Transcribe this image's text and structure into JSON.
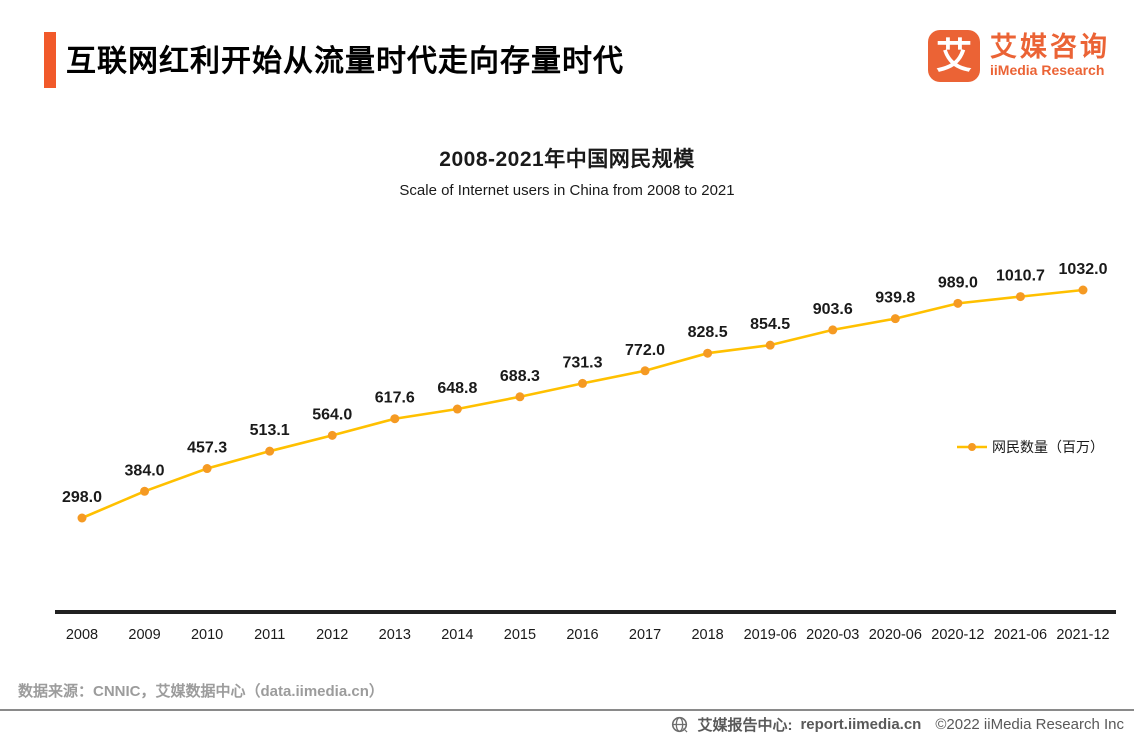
{
  "header": {
    "title": "互联网红利开始从流量时代走向存量时代",
    "logo": {
      "glyph": "艾",
      "name_cn": "艾媒咨询",
      "name_en": "iiMedia Research"
    }
  },
  "chart": {
    "title": "2008-2021年中国网民规模",
    "subtitle": "Scale of Internet users in China from 2008 to 2021",
    "legend_label": "网民数量（百万）"
  },
  "chart_data": {
    "type": "line",
    "title": "2008-2021年中国网民规模",
    "subtitle": "Scale of Internet users in China from 2008 to 2021",
    "categories": [
      "2008",
      "2009",
      "2010",
      "2011",
      "2012",
      "2013",
      "2014",
      "2015",
      "2016",
      "2017",
      "2018",
      "2019-06",
      "2020-03",
      "2020-06",
      "2020-12",
      "2021-06",
      "2021-12"
    ],
    "series": [
      {
        "name": "网民数量（百万）",
        "values": [
          298.0,
          384.0,
          457.3,
          513.1,
          564.0,
          617.6,
          648.8,
          688.3,
          731.3,
          772.0,
          828.5,
          854.5,
          903.6,
          939.8,
          989.0,
          1010.7,
          1032.0
        ]
      }
    ],
    "xlabel": "",
    "ylabel": "网民数量（百万）",
    "ylim": [
      0,
      1100
    ],
    "grid": false,
    "legend_position": "right",
    "data_labels": true,
    "colors": {
      "line": "#FFC000",
      "marker": "#F59A23",
      "axis": "#212121",
      "label_text": "#1a1a1a"
    }
  },
  "footer": {
    "source": "数据来源：CNNIC，艾媒数据中心（data.iimedia.cn）",
    "report_center_label": "艾媒报告中心:",
    "report_center_url": "report.iimedia.cn",
    "copyright": "©2022  iiMedia Research Inc"
  }
}
